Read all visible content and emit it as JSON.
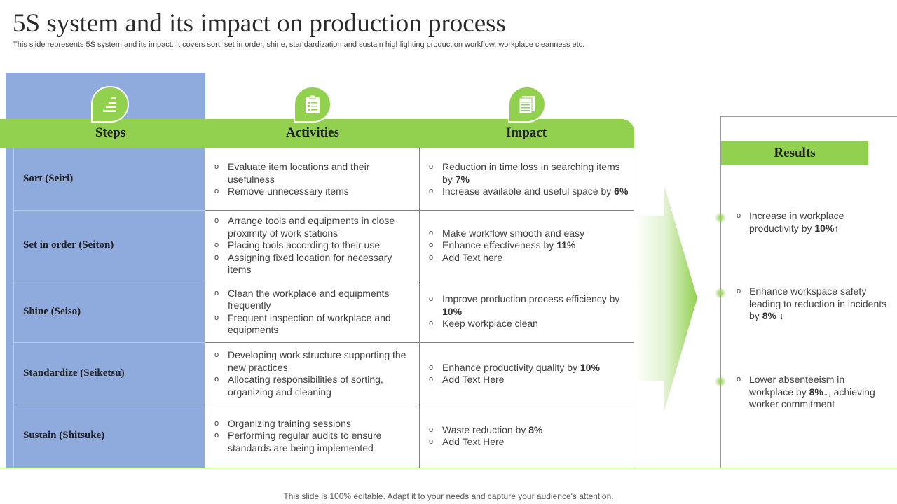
{
  "title": "5S system and its impact on production process",
  "subtitle": "This slide represents 5S system and its impact. It covers sort, set in order, shine, standardization and sustain highlighting production workflow, workplace cleanness etc.",
  "headers": {
    "steps": "Steps",
    "activities": "Activities",
    "impact": "Impact"
  },
  "icons": {
    "steps": "stairs-icon",
    "activities": "clipboard-checklist-icon",
    "impact": "document-icon"
  },
  "rows": [
    {
      "step": "Sort (Seiri)",
      "activities": [
        "Evaluate item locations and their usefulness",
        "Remove unnecessary items"
      ],
      "impact": [
        {
          "text": "Reduction in time loss in searching items by ",
          "value": "7%"
        },
        {
          "text": "Increase available and useful space by ",
          "value": "6%"
        }
      ]
    },
    {
      "step": "Set in order (Seiton)",
      "activities": [
        "Arrange tools and equipments in close proximity of work stations",
        "Placing tools according to their use",
        "Assigning fixed location for necessary items"
      ],
      "impact": [
        {
          "text": "Make workflow smooth and easy",
          "value": ""
        },
        {
          "text": "Enhance effectiveness by ",
          "value": "11%"
        },
        {
          "text": "Add Text here",
          "value": ""
        }
      ]
    },
    {
      "step": "Shine (Seiso)",
      "activities": [
        "Clean the workplace and equipments frequently",
        "Frequent inspection of workplace and equipments"
      ],
      "impact": [
        {
          "text": "Improve production process efficiency by ",
          "value": "10%"
        },
        {
          "text": "Keep workplace clean",
          "value": ""
        }
      ]
    },
    {
      "step": "Standardize (Seiketsu)",
      "activities": [
        "Developing work structure supporting the new practices",
        "Allocating responsibilities of sorting, organizing and cleaning"
      ],
      "impact": [
        {
          "text": "Enhance productivity quality by ",
          "value": "10%"
        },
        {
          "text": "Add Text Here",
          "value": ""
        }
      ]
    },
    {
      "step": "Sustain (Shitsuke)",
      "activities": [
        "Organizing training sessions",
        "Performing regular audits to ensure standards are being implemented"
      ],
      "impact": [
        {
          "text": "Waste reduction by ",
          "value": "8%"
        },
        {
          "text": "Add Text Here",
          "value": ""
        }
      ]
    }
  ],
  "results": {
    "header": "Results",
    "items": [
      {
        "pre": "Increase in workplace productivity by ",
        "value": "10%",
        "arrow": "↑",
        "post": ""
      },
      {
        "pre": "Enhance workspace safety leading to reduction in incidents by ",
        "value": "8%",
        "arrow": "↓",
        "post": ""
      },
      {
        "pre": "Lower absenteeism in workplace by ",
        "value": "8%",
        "arrow": "↓",
        "post": ", achieving worker commitment"
      }
    ]
  },
  "colors": {
    "green": "#92d050",
    "blue": "#8faadc",
    "line": "#7f7f7f"
  },
  "footer": "This slide is 100% editable. Adapt it to your needs and capture your audience's attention."
}
